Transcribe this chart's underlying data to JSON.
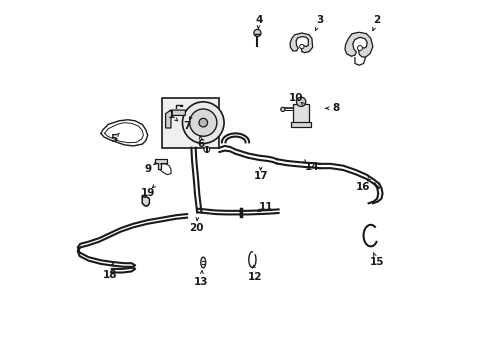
{
  "bg_color": "#ffffff",
  "lc": "#1a1a1a",
  "lw": 1.0,
  "lw_thick": 1.5,
  "lw_thin": 0.7,
  "fontsize": 7.5,
  "arrow_scale": 5,
  "labels": {
    "1": [
      0.295,
      0.68,
      0.32,
      0.66
    ],
    "2": [
      0.87,
      0.945,
      0.855,
      0.91
    ],
    "3": [
      0.71,
      0.945,
      0.695,
      0.91
    ],
    "4": [
      0.54,
      0.945,
      0.538,
      0.915
    ],
    "5": [
      0.135,
      0.615,
      0.155,
      0.635
    ],
    "6": [
      0.38,
      0.6,
      0.375,
      0.63
    ],
    "7": [
      0.34,
      0.65,
      0.348,
      0.67
    ],
    "8": [
      0.755,
      0.7,
      0.72,
      0.7
    ],
    "9": [
      0.23,
      0.53,
      0.25,
      0.545
    ],
    "10": [
      0.643,
      0.73,
      0.66,
      0.715
    ],
    "11": [
      0.56,
      0.425,
      0.53,
      0.408
    ],
    "12": [
      0.53,
      0.23,
      0.524,
      0.27
    ],
    "13": [
      0.38,
      0.215,
      0.382,
      0.255
    ],
    "14": [
      0.688,
      0.535,
      0.67,
      0.55
    ],
    "15": [
      0.87,
      0.27,
      0.855,
      0.31
    ],
    "16": [
      0.83,
      0.48,
      0.845,
      0.5
    ],
    "17": [
      0.545,
      0.51,
      0.545,
      0.53
    ],
    "18": [
      0.125,
      0.235,
      0.135,
      0.275
    ],
    "19": [
      0.23,
      0.465,
      0.245,
      0.48
    ],
    "20": [
      0.365,
      0.365,
      0.368,
      0.39
    ]
  }
}
